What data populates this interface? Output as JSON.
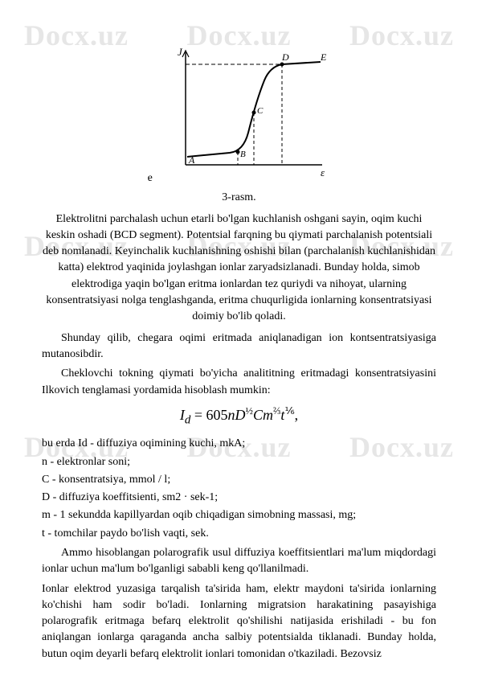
{
  "watermark": "Docx.uz",
  "figure": {
    "e_label": "e",
    "axis_y": "J",
    "axis_x": "ε",
    "label_A": "A",
    "label_B": "B",
    "label_C": "C",
    "label_D": "D",
    "label_E": "E",
    "stroke": "#000000"
  },
  "caption": "3-rasm.",
  "para1": "Elektrolitni parchalash uchun etarli bo'lgan kuchlanish oshgani sayin, oqim kuchi keskin oshadi (BCD segment). Potentsial farqning bu qiymati parchalanish potentsiali deb nomlanadi. Keyinchalik kuchlanishning oshishi bilan (parchalanish kuchlanishidan katta) elektrod yaqinida joylashgan ionlar zaryadsizlanadi. Bunday holda, simob elektrodiga yaqin bo'lgan eritma ionlardan tez quriydi va nihoyat, ularning konsentratsiyasi nolga tenglashganda, eritma chuqurligida ionlarning konsentratsiyasi doimiy bo'lib qoladi.",
  "para2": "Shunday qilib, chegara oqimi eritmada aniqlanadigan ion kontsentratsiyasiga mutanosibdir.",
  "para3": "Cheklovchi tokning qiymati bo'yicha analititning eritmadagi konsentratsiyasini Ilkovich tenglamasi yordamida hisoblash mumkin:",
  "formula_html": "<i>I<sub>d</sub></i> = 605<i>nD</i><sup>½</sup><i>Cm</i><sup>⅔</sup><i>t</i><sup>⅙</sup>,",
  "defs": {
    "d1": "bu erda Id - diffuziya oqimining kuchi, mkA;",
    "d2": "n - elektronlar soni;",
    "d3": "C - konsentratsiya, mmol / l;",
    "d4": "D - diffuziya koeffitsienti, sm2 · sek-1;",
    "d5": "m - 1 sekundda kapillyardan oqib chiqadigan simobning massasi, mg;",
    "d6": "t - tomchilar paydo bo'lish vaqti, sek."
  },
  "para4": "Ammo hisoblangan polarografik usul diffuziya koeffitsientlari ma'lum miqdordagi ionlar uchun ma'lum bo'lganligi sababli keng qo'llanilmadi.",
  "para5": "Ionlar elektrod yuzasiga tarqalish ta'sirida ham, elektr maydoni ta'sirida ionlarning ko'chishi ham sodir bo'ladi. Ionlarning migratsion harakatining pasayishiga polarografik eritmaga befarq elektrolit qo'shilishi natijasida erishiladi - bu fon aniqlangan ionlarga qaraganda ancha salbiy potentsialda tiklanadi. Bunday holda, butun oqim deyarli befarq elektrolit ionlari tomonidan o'tkaziladi. Bezovsiz"
}
